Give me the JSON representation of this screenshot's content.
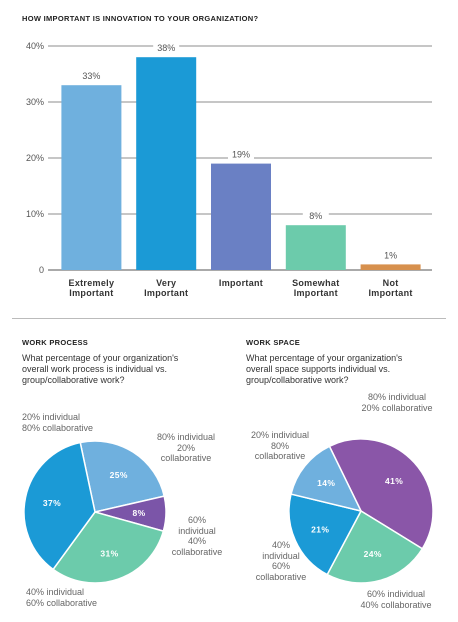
{
  "chart_data": [
    {
      "type": "bar",
      "title": "HOW IMPORTANT IS INNOVATION TO YOUR ORGANIZATION?",
      "categories": [
        [
          "Extremely",
          "Important"
        ],
        [
          "Very",
          "Important"
        ],
        [
          "Important"
        ],
        [
          "Somewhat",
          "Important"
        ],
        [
          "Not",
          "Important"
        ]
      ],
      "values": [
        33,
        38,
        19,
        8,
        1
      ],
      "value_labels": [
        "33%",
        "38%",
        "19%",
        "8%",
        "1%"
      ],
      "colors": [
        "#6fb0de",
        "#1b9ad6",
        "#6a80c4",
        "#6ccbab",
        "#d7904d"
      ],
      "ylim": [
        0,
        40
      ],
      "yticks": [
        0,
        10,
        20,
        30,
        40
      ],
      "ytick_labels": [
        "0",
        "10%",
        "20%",
        "30%",
        "40%"
      ],
      "grid": true
    },
    {
      "type": "pie",
      "section": "WORK PROCESS",
      "question": "What percentage of your organization's overall work process is individual vs. group/collaborative work?",
      "slices": [
        {
          "value": 25,
          "label": "25%",
          "desc": [
            "20% individual",
            "80% collaborative"
          ],
          "color": "#6fb0de"
        },
        {
          "value": 8,
          "label": "8%",
          "desc": [
            "80% individual",
            "20%",
            "collaborative"
          ],
          "color": "#7b55a8"
        },
        {
          "value": 31,
          "label": "31%",
          "desc": [
            "60%",
            "individual",
            "40%",
            "collaborative"
          ],
          "color": "#6ccbab"
        },
        {
          "value": 37,
          "label": "37%",
          "desc": [
            "40% individual",
            "60% collaborative"
          ],
          "color": "#1b9ad6"
        }
      ]
    },
    {
      "type": "pie",
      "section": "WORK SPACE",
      "question": "What percentage of your organization's overall space supports individual vs. group/collaborative work?",
      "slices": [
        {
          "value": 41,
          "label": "41%",
          "desc": [
            "80% individual",
            "20% collaborative"
          ],
          "color": "#8a56a8"
        },
        {
          "value": 24,
          "label": "24%",
          "desc": [
            "60% individual",
            "40% collaborative"
          ],
          "color": "#6ccbab"
        },
        {
          "value": 21,
          "label": "21%",
          "desc": [
            "40%",
            "individual",
            "60%",
            "collaborative"
          ],
          "color": "#1b9ad6"
        },
        {
          "value": 14,
          "label": "14%",
          "desc": [
            "20% individual",
            "80%",
            "collaborative"
          ],
          "color": "#6fb0de"
        }
      ]
    }
  ]
}
